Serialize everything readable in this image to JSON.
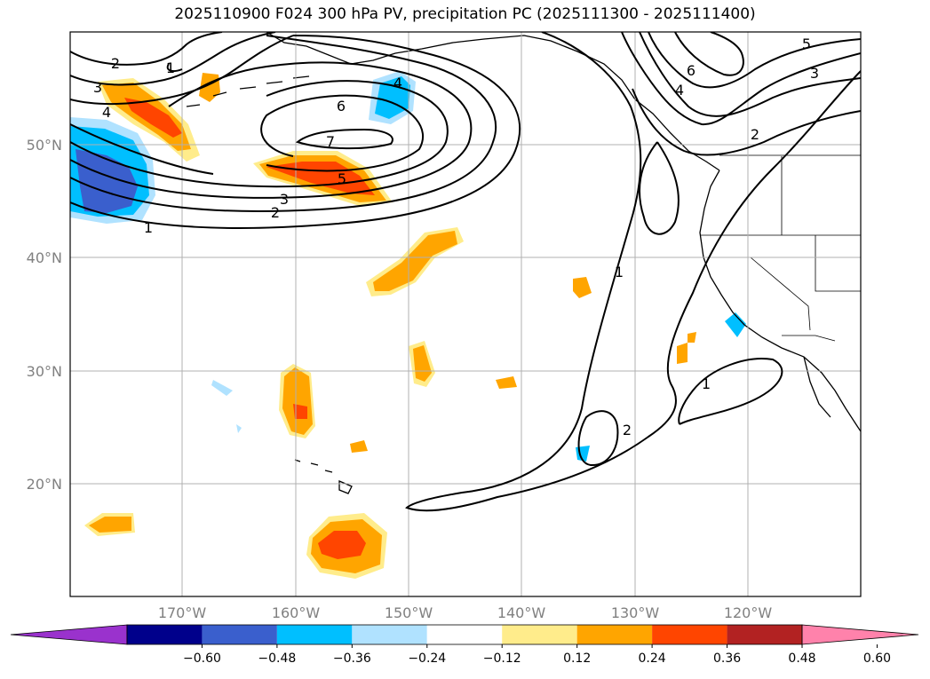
{
  "title": "2025110900 F024 300 hPa PV, precipitation PC (2025111300 - 2025111400)",
  "lat_labels": [
    "50°N",
    "40°N",
    "30°N",
    "20°N"
  ],
  "lon_labels": [
    "170°W",
    "160°W",
    "150°W",
    "140°W",
    "130°W",
    "120°W"
  ],
  "colorbar": {
    "ticks": [
      "−0.60",
      "−0.48",
      "−0.36",
      "−0.24",
      "−0.12",
      "0.12",
      "0.24",
      "0.36",
      "0.48",
      "0.60"
    ],
    "colors": [
      "#9a32cd",
      "#00008b",
      "#3a5fcd",
      "#00bfff",
      "#b0e2ff",
      "#ffffff",
      "#ffec8b",
      "#ffa500",
      "#ff4500",
      "#b22222",
      "#ff82ab"
    ]
  },
  "contour_labels": {
    "pv1a": "1",
    "pv2a": "2",
    "pv3a": "3",
    "pv4a": "4",
    "pv6a": "6",
    "pv7a": "7",
    "pv5a": "5",
    "pv3b": "3",
    "pv2b": "2",
    "pv1b": "1",
    "pv4b": "4",
    "pv1c": "1",
    "pv1d": "1",
    "pv2c": "2",
    "pv6b": "6",
    "pv4c": "4",
    "pv5b": "5",
    "pv3c": "3",
    "pv2d": "2"
  },
  "shading_colors": {
    "light_yellow": "#ffec8b",
    "orange": "#ffa500",
    "red_orange": "#ff4500",
    "light_blue": "#b0e2ff",
    "blue": "#00bfff",
    "dark_blue": "#3a5fcd"
  }
}
